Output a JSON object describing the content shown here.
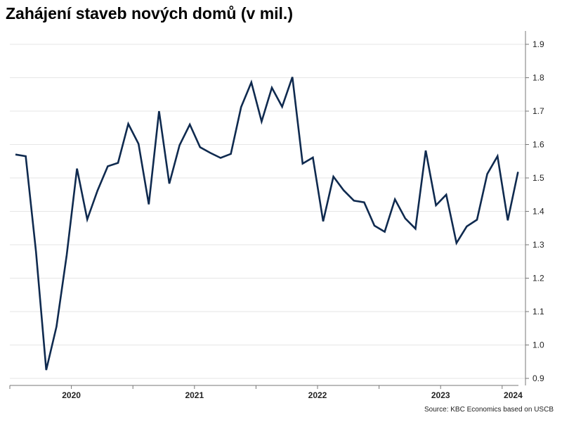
{
  "chart_data": {
    "type": "line",
    "title": "Zahájení staveb nových domů (v mil.)",
    "source": "Source: KBC Economics based on USCB",
    "xlabel": "",
    "ylabel": "",
    "ylim": [
      0.9,
      1.9
    ],
    "y_ticks": [
      0.9,
      1.0,
      1.1,
      1.2,
      1.3,
      1.4,
      1.5,
      1.6,
      1.7,
      1.8,
      1.9
    ],
    "y_tick_labels": [
      "0.9",
      "1.0",
      "1.1",
      "1.2",
      "1.3",
      "1.4",
      "1.5",
      "1.6",
      "1.7",
      "1.8",
      "1.9"
    ],
    "x_tick_labels": [
      "2020",
      "2021",
      "2022",
      "2023",
      "2024"
    ],
    "grid": true,
    "line_color": "#0f2a4f",
    "series": [
      {
        "x": [
          "2020-01",
          "2020-02",
          "2020-03",
          "2020-04",
          "2020-05",
          "2020-06",
          "2020-07",
          "2020-08",
          "2020-09",
          "2020-10",
          "2020-11",
          "2020-12",
          "2021-01",
          "2021-02",
          "2021-03",
          "2021-04",
          "2021-05",
          "2021-06",
          "2021-07",
          "2021-08",
          "2021-09",
          "2021-10",
          "2021-11",
          "2021-12",
          "2022-01",
          "2022-02",
          "2022-03",
          "2022-04",
          "2022-05",
          "2022-06",
          "2022-07",
          "2022-08",
          "2022-09",
          "2022-10",
          "2022-11",
          "2022-12",
          "2023-01",
          "2023-02",
          "2023-03",
          "2023-04",
          "2023-05",
          "2023-06",
          "2023-07",
          "2023-08",
          "2023-09",
          "2023-10",
          "2023-11",
          "2023-12",
          "2024-01",
          "2024-02"
        ],
        "values": [
          1.57,
          1.565,
          1.28,
          0.925,
          1.055,
          1.27,
          1.528,
          1.376,
          1.462,
          1.535,
          1.545,
          1.662,
          1.602,
          1.421,
          1.7,
          1.483,
          1.598,
          1.66,
          1.592,
          1.575,
          1.56,
          1.572,
          1.712,
          1.786,
          1.669,
          1.77,
          1.713,
          1.802,
          1.543,
          1.561,
          1.37,
          1.504,
          1.463,
          1.432,
          1.427,
          1.357,
          1.339,
          1.436,
          1.379,
          1.348,
          1.582,
          1.418,
          1.45,
          1.305,
          1.355,
          1.375,
          1.512,
          1.565,
          1.373,
          1.518
        ]
      }
    ]
  }
}
